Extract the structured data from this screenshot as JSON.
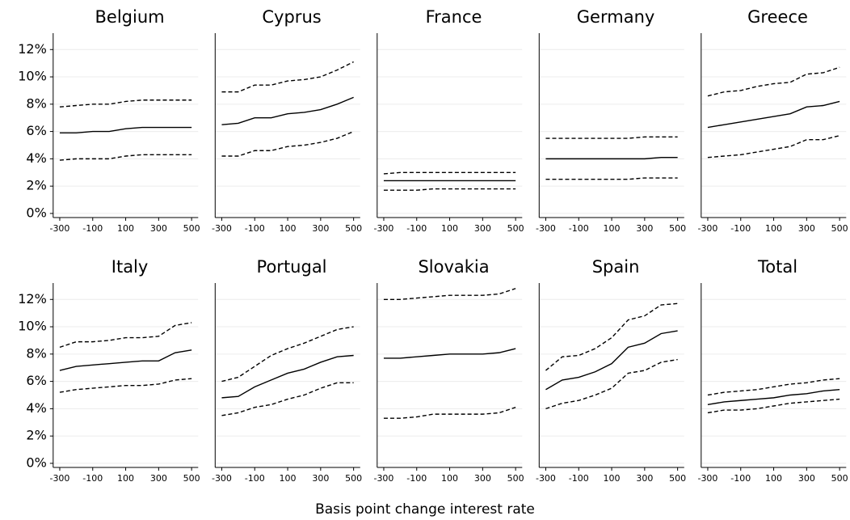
{
  "chart_data": [
    {
      "type": "line",
      "title": "Belgium",
      "x": [
        -300,
        -200,
        -100,
        0,
        100,
        200,
        300,
        400,
        500
      ],
      "xlim": [
        -340,
        540
      ],
      "xticks": [
        -300,
        -100,
        100,
        300,
        500
      ],
      "ylim": [
        -0.3,
        13.2
      ],
      "yticks": [
        {
          "value": 0,
          "label": "0%"
        },
        {
          "value": 2,
          "label": "2%"
        },
        {
          "value": 4,
          "label": "4%"
        },
        {
          "value": 6,
          "label": "6%"
        },
        {
          "value": 8,
          "label": "8%"
        },
        {
          "value": 10,
          "label": "10%"
        },
        {
          "value": 12,
          "label": "12%"
        }
      ],
      "grid": true,
      "series": [
        {
          "color": "#000000",
          "style": "solid",
          "values": [
            5.9,
            5.9,
            6.0,
            6.0,
            6.2,
            6.3,
            6.3,
            6.3,
            6.3
          ]
        },
        {
          "color": "#000000",
          "style": "dashed",
          "values": [
            7.8,
            7.9,
            8.0,
            8.0,
            8.2,
            8.3,
            8.3,
            8.3,
            8.3
          ]
        },
        {
          "color": "#000000",
          "style": "dashed",
          "values": [
            3.9,
            4.0,
            4.0,
            4.0,
            4.2,
            4.3,
            4.3,
            4.3,
            4.3
          ]
        }
      ]
    },
    {
      "type": "line",
      "title": "Cyprus",
      "x": [
        -300,
        -200,
        -100,
        0,
        100,
        200,
        300,
        400,
        500
      ],
      "xlim": [
        -340,
        540
      ],
      "xticks": [
        -300,
        -100,
        100,
        300,
        500
      ],
      "ylim": [
        -0.3,
        13.2
      ],
      "grid": true,
      "series": [
        {
          "color": "#000000",
          "style": "solid",
          "values": [
            6.5,
            6.6,
            7.0,
            7.0,
            7.3,
            7.4,
            7.6,
            8.0,
            8.5
          ]
        },
        {
          "color": "#000000",
          "style": "dashed",
          "values": [
            8.9,
            8.9,
            9.4,
            9.4,
            9.7,
            9.8,
            10.0,
            10.5,
            11.1
          ]
        },
        {
          "color": "#000000",
          "style": "dashed",
          "values": [
            4.2,
            4.2,
            4.6,
            4.6,
            4.9,
            5.0,
            5.2,
            5.5,
            6.0
          ]
        }
      ]
    },
    {
      "type": "line",
      "title": "France",
      "x": [
        -300,
        -200,
        -100,
        0,
        100,
        200,
        300,
        400,
        500
      ],
      "xlim": [
        -340,
        540
      ],
      "xticks": [
        -300,
        -100,
        100,
        300,
        500
      ],
      "ylim": [
        -0.3,
        13.2
      ],
      "grid": true,
      "series": [
        {
          "color": "#000000",
          "style": "solid",
          "values": [
            2.4,
            2.4,
            2.4,
            2.4,
            2.4,
            2.4,
            2.4,
            2.4,
            2.4
          ]
        },
        {
          "color": "#000000",
          "style": "dashed",
          "values": [
            2.9,
            3.0,
            3.0,
            3.0,
            3.0,
            3.0,
            3.0,
            3.0,
            3.0
          ]
        },
        {
          "color": "#000000",
          "style": "dashed",
          "values": [
            1.7,
            1.7,
            1.7,
            1.8,
            1.8,
            1.8,
            1.8,
            1.8,
            1.8
          ]
        }
      ]
    },
    {
      "type": "line",
      "title": "Germany",
      "x": [
        -300,
        -200,
        -100,
        0,
        100,
        200,
        300,
        400,
        500
      ],
      "xlim": [
        -340,
        540
      ],
      "xticks": [
        -300,
        -100,
        100,
        300,
        500
      ],
      "ylim": [
        -0.3,
        13.2
      ],
      "grid": true,
      "series": [
        {
          "color": "#000000",
          "style": "solid",
          "values": [
            4.0,
            4.0,
            4.0,
            4.0,
            4.0,
            4.0,
            4.0,
            4.1,
            4.1
          ]
        },
        {
          "color": "#000000",
          "style": "dashed",
          "values": [
            5.5,
            5.5,
            5.5,
            5.5,
            5.5,
            5.5,
            5.6,
            5.6,
            5.6
          ]
        },
        {
          "color": "#000000",
          "style": "dashed",
          "values": [
            2.5,
            2.5,
            2.5,
            2.5,
            2.5,
            2.5,
            2.6,
            2.6,
            2.6
          ]
        }
      ]
    },
    {
      "type": "line",
      "title": "Greece",
      "x": [
        -300,
        -200,
        -100,
        0,
        100,
        200,
        300,
        400,
        500
      ],
      "xlim": [
        -340,
        540
      ],
      "xticks": [
        -300,
        -100,
        100,
        300,
        500
      ],
      "ylim": [
        -0.3,
        13.2
      ],
      "grid": true,
      "series": [
        {
          "color": "#000000",
          "style": "solid",
          "values": [
            6.3,
            6.5,
            6.7,
            6.9,
            7.1,
            7.3,
            7.8,
            7.9,
            8.2
          ]
        },
        {
          "color": "#000000",
          "style": "dashed",
          "values": [
            8.6,
            8.9,
            9.0,
            9.3,
            9.5,
            9.6,
            10.2,
            10.3,
            10.7
          ]
        },
        {
          "color": "#000000",
          "style": "dashed",
          "values": [
            4.1,
            4.2,
            4.3,
            4.5,
            4.7,
            4.9,
            5.4,
            5.4,
            5.7
          ]
        }
      ]
    },
    {
      "type": "line",
      "title": "Italy",
      "x": [
        -300,
        -200,
        -100,
        0,
        100,
        200,
        300,
        400,
        500
      ],
      "xlim": [
        -340,
        540
      ],
      "xticks": [
        -300,
        -100,
        100,
        300,
        500
      ],
      "ylim": [
        -0.3,
        13.2
      ],
      "yticks": [
        {
          "value": 0,
          "label": "0%"
        },
        {
          "value": 2,
          "label": "2%"
        },
        {
          "value": 4,
          "label": "4%"
        },
        {
          "value": 6,
          "label": "6%"
        },
        {
          "value": 8,
          "label": "8%"
        },
        {
          "value": 10,
          "label": "10%"
        },
        {
          "value": 12,
          "label": "12%"
        }
      ],
      "grid": true,
      "series": [
        {
          "color": "#000000",
          "style": "solid",
          "values": [
            6.8,
            7.1,
            7.2,
            7.3,
            7.4,
            7.5,
            7.5,
            8.1,
            8.3
          ]
        },
        {
          "color": "#000000",
          "style": "dashed",
          "values": [
            8.5,
            8.9,
            8.9,
            9.0,
            9.2,
            9.2,
            9.3,
            10.1,
            10.3
          ]
        },
        {
          "color": "#000000",
          "style": "dashed",
          "values": [
            5.2,
            5.4,
            5.5,
            5.6,
            5.7,
            5.7,
            5.8,
            6.1,
            6.2
          ]
        }
      ]
    },
    {
      "type": "line",
      "title": "Portugal",
      "x": [
        -300,
        -200,
        -100,
        0,
        100,
        200,
        300,
        400,
        500
      ],
      "xlim": [
        -340,
        540
      ],
      "xticks": [
        -300,
        -100,
        100,
        300,
        500
      ],
      "ylim": [
        -0.3,
        13.2
      ],
      "grid": true,
      "series": [
        {
          "color": "#000000",
          "style": "solid",
          "values": [
            4.8,
            4.9,
            5.6,
            6.1,
            6.6,
            6.9,
            7.4,
            7.8,
            7.9
          ]
        },
        {
          "color": "#000000",
          "style": "dashed",
          "values": [
            6.0,
            6.3,
            7.1,
            7.9,
            8.4,
            8.8,
            9.3,
            9.8,
            10.0
          ]
        },
        {
          "color": "#000000",
          "style": "dashed",
          "values": [
            3.5,
            3.7,
            4.1,
            4.3,
            4.7,
            5.0,
            5.5,
            5.9,
            5.9
          ]
        }
      ]
    },
    {
      "type": "line",
      "title": "Slovakia",
      "x": [
        -300,
        -200,
        -100,
        0,
        100,
        200,
        300,
        400,
        500
      ],
      "xlim": [
        -340,
        540
      ],
      "xticks": [
        -300,
        -100,
        100,
        300,
        500
      ],
      "ylim": [
        -0.3,
        13.2
      ],
      "grid": true,
      "series": [
        {
          "color": "#000000",
          "style": "solid",
          "values": [
            7.7,
            7.7,
            7.8,
            7.9,
            8.0,
            8.0,
            8.0,
            8.1,
            8.4
          ]
        },
        {
          "color": "#000000",
          "style": "dashed",
          "values": [
            12.0,
            12.0,
            12.1,
            12.2,
            12.3,
            12.3,
            12.3,
            12.4,
            12.8
          ]
        },
        {
          "color": "#000000",
          "style": "dashed",
          "values": [
            3.3,
            3.3,
            3.4,
            3.6,
            3.6,
            3.6,
            3.6,
            3.7,
            4.1
          ]
        }
      ]
    },
    {
      "type": "line",
      "title": "Spain",
      "x": [
        -300,
        -200,
        -100,
        0,
        100,
        200,
        300,
        400,
        500
      ],
      "xlim": [
        -340,
        540
      ],
      "xticks": [
        -300,
        -100,
        100,
        300,
        500
      ],
      "ylim": [
        -0.3,
        13.2
      ],
      "grid": true,
      "series": [
        {
          "color": "#000000",
          "style": "solid",
          "values": [
            5.4,
            6.1,
            6.3,
            6.7,
            7.3,
            8.5,
            8.8,
            9.5,
            9.7
          ]
        },
        {
          "color": "#000000",
          "style": "dashed",
          "values": [
            6.8,
            7.8,
            7.9,
            8.4,
            9.2,
            10.5,
            10.8,
            11.6,
            11.7
          ]
        },
        {
          "color": "#000000",
          "style": "dashed",
          "values": [
            4.0,
            4.4,
            4.6,
            5.0,
            5.5,
            6.6,
            6.8,
            7.4,
            7.6
          ]
        }
      ]
    },
    {
      "type": "line",
      "title": "Total",
      "x": [
        -300,
        -200,
        -100,
        0,
        100,
        200,
        300,
        400,
        500
      ],
      "xlim": [
        -340,
        540
      ],
      "xticks": [
        -300,
        -100,
        100,
        300,
        500
      ],
      "ylim": [
        -0.3,
        13.2
      ],
      "grid": true,
      "series": [
        {
          "color": "#000000",
          "style": "solid",
          "values": [
            4.3,
            4.5,
            4.6,
            4.7,
            4.8,
            5.0,
            5.1,
            5.3,
            5.4
          ]
        },
        {
          "color": "#000000",
          "style": "dashed",
          "values": [
            5.0,
            5.2,
            5.3,
            5.4,
            5.6,
            5.8,
            5.9,
            6.1,
            6.2
          ]
        },
        {
          "color": "#000000",
          "style": "dashed",
          "values": [
            3.7,
            3.9,
            3.9,
            4.0,
            4.2,
            4.4,
            4.5,
            4.6,
            4.7
          ]
        }
      ]
    }
  ],
  "xlabel": "Basis point change interest rate"
}
